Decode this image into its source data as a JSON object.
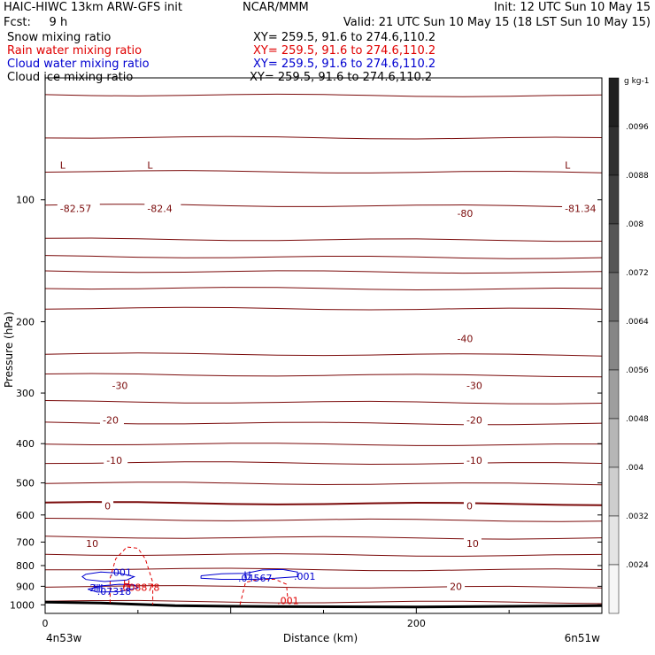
{
  "header": {
    "model": "HAIC-HIWC 13km ARW-GFS init",
    "org": "NCAR/MMM",
    "init": "Init: 12 UTC Sun 10 May 15",
    "fcst": "Fcst:     9 h",
    "valid": "Valid: 21 UTC Sun 10 May 15 (18 LST Sun 10 May 15)",
    "fields": [
      {
        "name": "Snow mixing ratio",
        "xy": "XY= 259.5, 91.6 to 274.6,110.2",
        "color": "#000000"
      },
      {
        "name": "Rain water mixing ratio",
        "xy": "XY= 259.5, 91.6 to 274.6,110.2",
        "color": "#e00000"
      },
      {
        "name": "Cloud water mixing ratio",
        "xy": "XY= 259.5, 91.6 to 274.6,110.2",
        "color": "#0000d0"
      },
      {
        "name": "Cloud ice mixing ratio",
        "xy": "XY= 259.5, 91.6 to 274.6,110.2",
        "color": "#000000"
      }
    ]
  },
  "chart_data": {
    "type": "line",
    "xlabel": "Distance (km)",
    "ylabel": "Pressure (hPa)",
    "x_ticks": [
      0,
      200
    ],
    "xlim": [
      0,
      300
    ],
    "x_end_labels": {
      "left": "4n53w",
      "right": "6n51w"
    },
    "y_ticks": [
      100,
      200,
      300,
      400,
      500,
      600,
      700,
      800,
      900,
      1000
    ],
    "ylim": [
      1050,
      50
    ],
    "yscale": "log",
    "isotherms": [
      {
        "p": 55,
        "t": ""
      },
      {
        "p": 70,
        "t": ""
      },
      {
        "p": 85,
        "t": ""
      },
      {
        "p": 103,
        "t": ""
      },
      {
        "p": 125,
        "t": ""
      },
      {
        "p": 138,
        "t": ""
      },
      {
        "p": 150,
        "t": ""
      },
      {
        "p": 165,
        "t": ""
      },
      {
        "p": 185,
        "t": ""
      },
      {
        "p": 240,
        "t": ""
      },
      {
        "p": 270,
        "t": ""
      },
      {
        "p": 315,
        "t": ""
      },
      {
        "p": 355,
        "t": ""
      },
      {
        "p": 400,
        "t": ""
      },
      {
        "p": 445,
        "t": ""
      },
      {
        "p": 500,
        "t": ""
      },
      {
        "p": 560,
        "t": ""
      },
      {
        "p": 615,
        "t": ""
      },
      {
        "p": 680,
        "t": ""
      },
      {
        "p": 750,
        "t": ""
      },
      {
        "p": 815,
        "t": ""
      },
      {
        "p": 900,
        "t": ""
      },
      {
        "p": 980,
        "t": ""
      }
    ],
    "temp_labels": [
      {
        "x": 8,
        "p": 105,
        "text": "-82.57"
      },
      {
        "x": 55,
        "p": 105,
        "text": "-82.4"
      },
      {
        "x": 280,
        "p": 105,
        "text": "-81.34"
      },
      {
        "x": 222,
        "p": 108,
        "text": "-80"
      },
      {
        "x": 222,
        "p": 220,
        "text": "-40"
      },
      {
        "x": 36,
        "p": 287,
        "text": "-30"
      },
      {
        "x": 227,
        "p": 287,
        "text": "-30"
      },
      {
        "x": 31,
        "p": 350,
        "text": "-20"
      },
      {
        "x": 227,
        "p": 350,
        "text": "-20"
      },
      {
        "x": 33,
        "p": 440,
        "text": "-10"
      },
      {
        "x": 227,
        "p": 440,
        "text": "-10"
      },
      {
        "x": 32,
        "p": 570,
        "text": "0"
      },
      {
        "x": 227,
        "p": 570,
        "text": "0"
      },
      {
        "x": 22,
        "p": 705,
        "text": "10"
      },
      {
        "x": 227,
        "p": 705,
        "text": "10"
      },
      {
        "x": 218,
        "p": 900,
        "text": "20"
      }
    ],
    "low_markers": [
      {
        "x": 8,
        "p": 82,
        "text": "L"
      },
      {
        "x": 55,
        "p": 82,
        "text": "L"
      },
      {
        "x": 280,
        "p": 82,
        "text": "L"
      }
    ],
    "surface": [
      [
        0,
        985
      ],
      [
        30,
        990
      ],
      [
        70,
        1005
      ],
      [
        120,
        1010
      ],
      [
        200,
        1012
      ],
      [
        260,
        1008
      ],
      [
        300,
        1005
      ]
    ],
    "rain_contours": [
      [
        [
          35,
          990
        ],
        [
          35,
          860
        ],
        [
          38,
          770
        ],
        [
          44,
          720
        ],
        [
          50,
          725
        ],
        [
          54,
          770
        ],
        [
          58,
          880
        ],
        [
          58,
          1000
        ]
      ],
      [
        [
          105,
          1000
        ],
        [
          108,
          880
        ],
        [
          115,
          865
        ],
        [
          124,
          865
        ],
        [
          130,
          890
        ],
        [
          131,
          1000
        ]
      ]
    ],
    "rain_labels": [
      {
        "x": 40,
        "p": 905,
        "text": ".008878"
      },
      {
        "x": 42,
        "p": 888,
        "text": "H"
      },
      {
        "x": 125,
        "p": 975,
        "text": ".001"
      }
    ],
    "cloud_water_contours": [
      [
        [
          22,
          840
        ],
        [
          30,
          830
        ],
        [
          40,
          835
        ],
        [
          48,
          852
        ],
        [
          44,
          868
        ],
        [
          32,
          876
        ],
        [
          22,
          866
        ],
        [
          20,
          852
        ],
        [
          22,
          840
        ]
      ],
      [
        [
          23,
          915
        ],
        [
          30,
          898
        ],
        [
          40,
          890
        ],
        [
          48,
          893
        ],
        [
          50,
          908
        ],
        [
          40,
          928
        ],
        [
          28,
          930
        ],
        [
          23,
          915
        ]
      ],
      [
        [
          84,
          848
        ],
        [
          95,
          838
        ],
        [
          108,
          836
        ],
        [
          117,
          820
        ],
        [
          128,
          818
        ],
        [
          136,
          830
        ],
        [
          136,
          852
        ],
        [
          124,
          860
        ],
        [
          112,
          865
        ],
        [
          95,
          865
        ],
        [
          84,
          860
        ],
        [
          84,
          848
        ]
      ]
    ],
    "cloud_water_labels": [
      {
        "x": 35,
        "p": 830,
        "text": ".001"
      },
      {
        "x": 24,
        "p": 908,
        "text": "2H"
      },
      {
        "x": 28,
        "p": 925,
        "text": ".07318"
      },
      {
        "x": 26,
        "p": 908,
        "text": "H"
      },
      {
        "x": 107,
        "p": 843,
        "text": "H"
      },
      {
        "x": 104,
        "p": 858,
        "text": ".04567"
      },
      {
        "x": 134,
        "p": 850,
        "text": ".001"
      }
    ],
    "colorbar": {
      "unit": "g kg-1",
      "levels": [
        ".0096",
        ".0088",
        ".008",
        ".0072",
        ".0064",
        ".0056",
        ".0048",
        ".004",
        ".0032",
        ".0024"
      ],
      "colors": [
        "#202020",
        "#303030",
        "#404040",
        "#565656",
        "#6e6e6e",
        "#868686",
        "#9e9e9e",
        "#b6b6b6",
        "#cecece",
        "#e4e4e4",
        "#f6f6f6"
      ]
    },
    "colors": {
      "isotherm": "#7a0a0a",
      "rain": "#e00000",
      "cloud": "#0000d0"
    }
  }
}
